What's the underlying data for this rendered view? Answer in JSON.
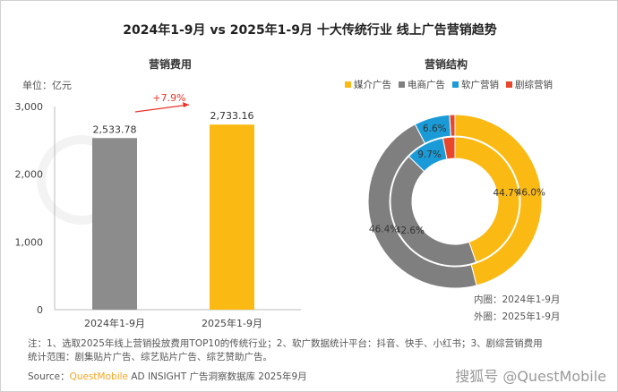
{
  "title": "2024年1-9月 vs 2025年1-9月 十大传统行业 线上广告营销趋势",
  "watermark": "QUESTMOBILE",
  "chart_data": [
    {
      "type": "bar",
      "title": "营销费用",
      "unit_label": "单位：亿元",
      "categories": [
        "2024年1-9月",
        "2025年1-9月"
      ],
      "values": [
        2533.78,
        2733.16
      ],
      "value_labels": [
        "2,533.78",
        "2,733.16"
      ],
      "colors": [
        "#8c8c8c",
        "#fbb913"
      ],
      "ylim": [
        0,
        3000
      ],
      "yticks": [
        0,
        1000,
        2000,
        3000
      ],
      "ytick_labels": [
        "0",
        "1,000",
        "2,000",
        "3,000"
      ],
      "annotation": "+7.9%",
      "annotation_color": "#e8352b",
      "grid": false
    },
    {
      "type": "pie",
      "title": "营销结构",
      "legend": [
        "媒介广告",
        "电商广告",
        "软广营销",
        "剧综营销"
      ],
      "colors": [
        "#fbb913",
        "#7f7f7f",
        "#1a9bd7",
        "#e8472b"
      ],
      "rings": [
        {
          "name": "内圈：2024年1-9月",
          "values": [
            44.7,
            42.6,
            9.7,
            3.0
          ],
          "labels": [
            "44.7%",
            "42.6%",
            "9.7%",
            ""
          ]
        },
        {
          "name": "外圈：2025年1-9月",
          "values": [
            46.0,
            46.4,
            6.6,
            1.0
          ],
          "labels": [
            "46.0%",
            "46.4%",
            "6.6%",
            ""
          ]
        }
      ]
    }
  ],
  "notes": {
    "line1": "注：1、选取2025年线上营销投放费用TOP10的传统行业；2、软广数据统计平台：抖音、快手、小红书；3、剧综营销费用",
    "line2": "统计范围：剧集贴片广告、综艺贴片广告、综艺赞助广告。"
  },
  "source": {
    "prefix": "Source：",
    "brand": "QuestMobile",
    "rest": " AD INSIGHT 广告洞察数据库 2025年9月"
  },
  "credit": "搜狐号 @QuestMobile"
}
